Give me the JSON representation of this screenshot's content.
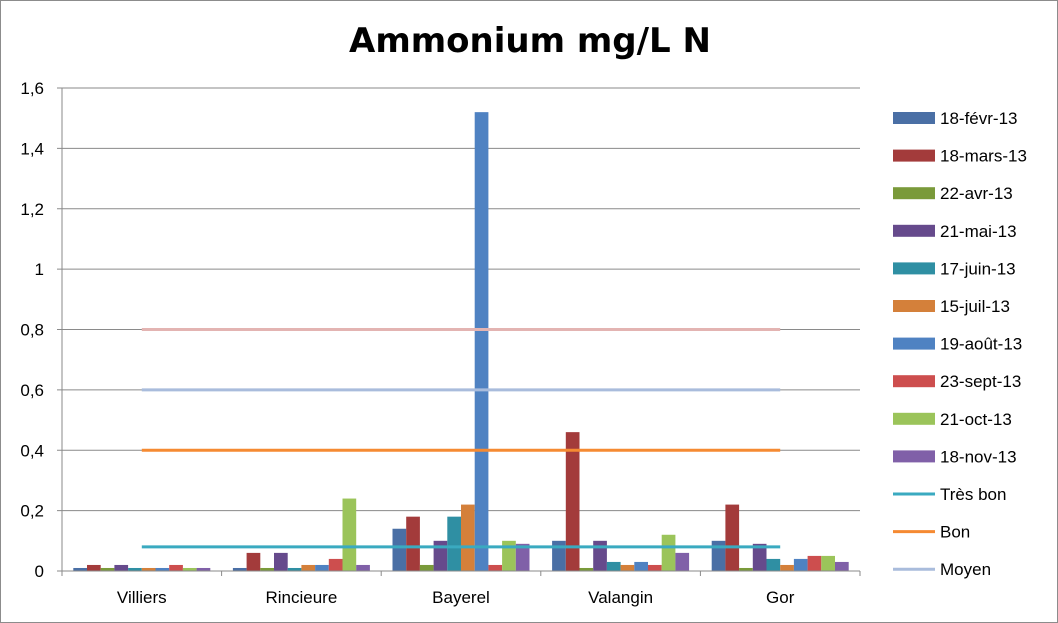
{
  "chart_data": {
    "type": "bar",
    "title": "Ammonium mg/L N",
    "xlabel": "",
    "ylabel": "",
    "ylim": [
      0,
      1.6
    ],
    "y_ticks": [
      "0",
      "0,2",
      "0,4",
      "0,6",
      "0,8",
      "1",
      "1,2",
      "1,4",
      "1,6"
    ],
    "grid": true,
    "legend_position": "right",
    "categories": [
      "Villiers",
      "Rincieure",
      "Bayerel",
      "Valangin",
      "Gor"
    ],
    "series": [
      {
        "name": "18-févr-13",
        "color": "#4A6FA5",
        "values": [
          0.01,
          0.01,
          0.14,
          0.1,
          0.1
        ]
      },
      {
        "name": "18-mars-13",
        "color": "#A33B3B",
        "values": [
          0.02,
          0.06,
          0.18,
          0.46,
          0.22
        ]
      },
      {
        "name": "22-avr-13",
        "color": "#7A9A3A",
        "values": [
          0.01,
          0.01,
          0.02,
          0.01,
          0.01
        ]
      },
      {
        "name": "21-mai-13",
        "color": "#664A8C",
        "values": [
          0.02,
          0.06,
          0.1,
          0.1,
          0.09
        ]
      },
      {
        "name": "17-juin-13",
        "color": "#2F8FA3",
        "values": [
          0.01,
          0.01,
          0.18,
          0.03,
          0.04
        ]
      },
      {
        "name": "15-juil-13",
        "color": "#D4803A",
        "values": [
          0.01,
          0.02,
          0.22,
          0.02,
          0.02
        ]
      },
      {
        "name": "19-août-13",
        "color": "#4F82C2",
        "values": [
          0.01,
          0.02,
          1.52,
          0.03,
          0.04
        ]
      },
      {
        "name": "23-sept-13",
        "color": "#CD4E4E",
        "values": [
          0.02,
          0.04,
          0.02,
          0.02,
          0.05
        ]
      },
      {
        "name": "21-oct-13",
        "color": "#9BC45A",
        "values": [
          0.01,
          0.24,
          0.1,
          0.12,
          0.05
        ]
      },
      {
        "name": "18-nov-13",
        "color": "#8060A8",
        "values": [
          0.01,
          0.02,
          0.09,
          0.06,
          0.03
        ]
      }
    ],
    "threshold_lines": [
      {
        "name": "Très bon",
        "value": 0.08,
        "color": "#3AAAC0"
      },
      {
        "name": "Bon",
        "value": 0.4,
        "color": "#F58A32"
      },
      {
        "name": "Moyen",
        "value": 0.6,
        "color": "#A9BCDC"
      },
      {
        "name": "",
        "value": 0.8,
        "color": "#E3B4B2"
      }
    ]
  }
}
